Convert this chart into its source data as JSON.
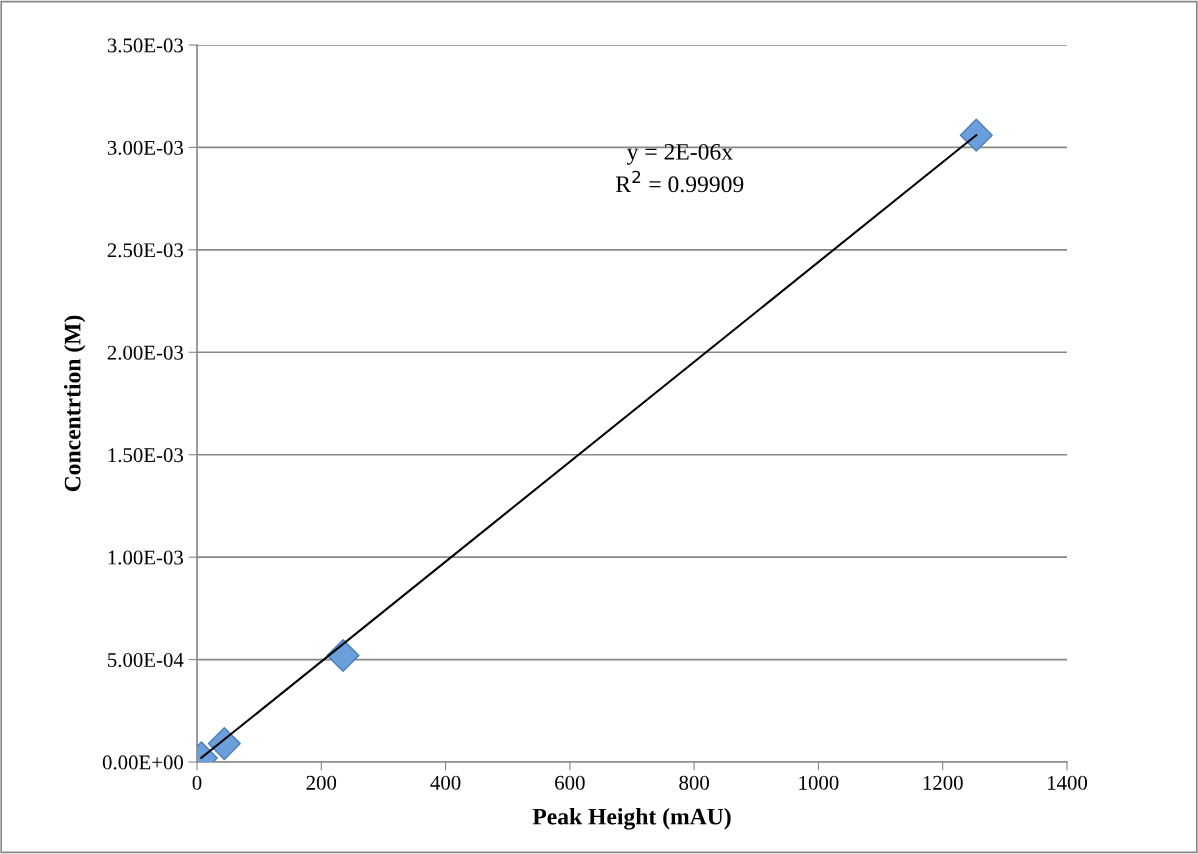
{
  "chart_data": {
    "type": "scatter",
    "xlabel": "Peak Height (mAU)",
    "ylabel": "Concentrtion (M)",
    "x": [
      7,
      44,
      235,
      1254
    ],
    "series": [
      {
        "color": "#6a9fdc",
        "marker": "diamond",
        "values": [
          2e-05,
          9e-05,
          0.00052,
          0.00306
        ]
      },
      {
        "type": "line",
        "color": "#000000",
        "marker": "none",
        "line_style": "solid",
        "x": [
          7,
          1254
        ],
        "values": [
          2e-05,
          0.00306
        ]
      }
    ],
    "xlim": [
      0,
      1400
    ],
    "xticks": [
      0,
      200,
      400,
      600,
      800,
      1000,
      1200,
      1400
    ],
    "ylim": [
      0,
      0.0035
    ],
    "yticks": [
      {
        "value": 0,
        "label": "0.00E+00"
      },
      {
        "value": 0.0005,
        "label": "5.00E-04"
      },
      {
        "value": 0.001,
        "label": "1.00E-03"
      },
      {
        "value": 0.0015,
        "label": "1.50E-03"
      },
      {
        "value": 0.002,
        "label": "2.00E-03"
      },
      {
        "value": 0.0025,
        "label": "2.50E-03"
      },
      {
        "value": 0.003,
        "label": "3.00E-03"
      },
      {
        "value": 0.0035,
        "label": "3.50E-03"
      }
    ],
    "grid": "y",
    "annotations": [
      "y = 2E-06x",
      "R$^{2}$ = 0.99909"
    ]
  }
}
